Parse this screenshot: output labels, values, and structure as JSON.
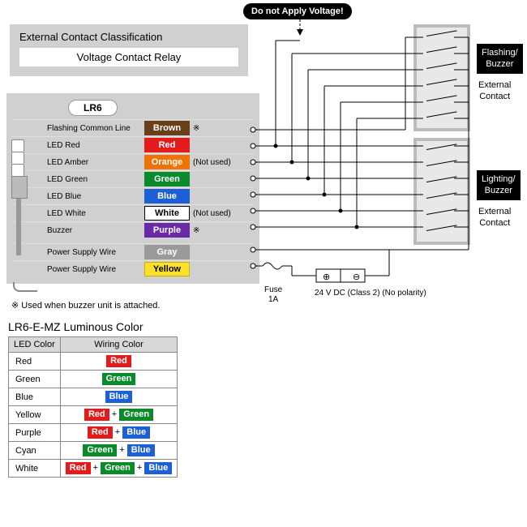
{
  "warning": "Do not Apply Voltage!",
  "classification": {
    "title": "External Contact Classification",
    "subtitle": "Voltage Contact Relay"
  },
  "device": "LR6",
  "wires": [
    {
      "label": "Flashing Common Line",
      "chip": "Brown",
      "bg": "#6b3e1a",
      "fg": "#ffffff",
      "border": "#6b3e1a",
      "note": "※"
    },
    {
      "label": "LED Red",
      "chip": "Red",
      "bg": "#e41b1b",
      "fg": "#ffffff",
      "border": "#e41b1b"
    },
    {
      "label": "LED Amber",
      "chip": "Orange",
      "bg": "#f07200",
      "fg": "#ffffff",
      "border": "#f07200",
      "note": "(Not used)"
    },
    {
      "label": "LED Green",
      "chip": "Green",
      "bg": "#0a8a2a",
      "fg": "#ffffff",
      "border": "#0a8a2a"
    },
    {
      "label": "LED Blue",
      "chip": "Blue",
      "bg": "#1d5fd6",
      "fg": "#ffffff",
      "border": "#1d5fd6"
    },
    {
      "label": "LED White",
      "chip": "White",
      "bg": "#ffffff",
      "fg": "#000000",
      "border": "#000000",
      "note": "(Not used)"
    },
    {
      "label": "Buzzer",
      "chip": "Purple",
      "bg": "#6a2aa8",
      "fg": "#ffffff",
      "border": "#6a2aa8",
      "note": "※"
    },
    {
      "label": "Power Supply Wire",
      "chip": "Gray",
      "bg": "#9a9a9a",
      "fg": "#ffffff",
      "border": "#9a9a9a",
      "sep": true
    },
    {
      "label": "Power Supply Wire",
      "chip": "Yellow",
      "bg": "#ffe02a",
      "fg": "#000000",
      "border": "#c9b000"
    }
  ],
  "footnote": "※  Used when buzzer unit is attached.",
  "fuse": "Fuse\n1A",
  "psu": "24 V DC (Class 2) (No polarity)",
  "groupA": {
    "title": "Flashing/\nBuzzer",
    "sub": "External\nContact"
  },
  "groupB": {
    "title": "Lighting/\nBuzzer",
    "sub": "External\nContact"
  },
  "lumTitle": "LR6-E-MZ Luminous Color",
  "lumHeaders": [
    "LED Color",
    "Wiring Color"
  ],
  "lumRows": [
    {
      "led": "Red",
      "mix": [
        {
          "t": "Red",
          "bg": "#e41b1b",
          "fg": "#fff"
        }
      ]
    },
    {
      "led": "Green",
      "mix": [
        {
          "t": "Green",
          "bg": "#0a8a2a",
          "fg": "#fff"
        }
      ]
    },
    {
      "led": "Blue",
      "mix": [
        {
          "t": "Blue",
          "bg": "#1d5fd6",
          "fg": "#fff"
        }
      ]
    },
    {
      "led": "Yellow",
      "mix": [
        {
          "t": "Red",
          "bg": "#e41b1b",
          "fg": "#fff"
        },
        {
          "t": "Green",
          "bg": "#0a8a2a",
          "fg": "#fff"
        }
      ]
    },
    {
      "led": "Purple",
      "mix": [
        {
          "t": "Red",
          "bg": "#e41b1b",
          "fg": "#fff"
        },
        {
          "t": "Blue",
          "bg": "#1d5fd6",
          "fg": "#fff"
        }
      ]
    },
    {
      "led": "Cyan",
      "mix": [
        {
          "t": "Green",
          "bg": "#0a8a2a",
          "fg": "#fff"
        },
        {
          "t": "Blue",
          "bg": "#1d5fd6",
          "fg": "#fff"
        }
      ]
    },
    {
      "led": "White",
      "mix": [
        {
          "t": "Red",
          "bg": "#e41b1b",
          "fg": "#fff"
        },
        {
          "t": "Green",
          "bg": "#0a8a2a",
          "fg": "#fff"
        },
        {
          "t": "Blue",
          "bg": "#1d5fd6",
          "fg": "#fff"
        }
      ]
    }
  ],
  "colors": {
    "panel": "#d0d0d0",
    "wireline": "#000000"
  }
}
